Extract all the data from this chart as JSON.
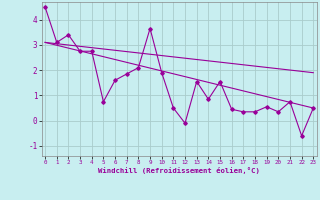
{
  "xlabel": "Windchill (Refroidissement éolien,°C)",
  "bg_color": "#c8eef0",
  "line_color": "#990099",
  "grid_color": "#aacccc",
  "series1_y": [
    4.5,
    3.1,
    3.4,
    2.75,
    2.75,
    0.75,
    1.6,
    1.85,
    2.1,
    3.65,
    1.9,
    0.5,
    -0.1,
    1.55,
    0.85,
    1.55,
    0.45,
    0.35,
    0.35,
    0.55,
    0.35,
    0.75,
    -0.6,
    0.5
  ],
  "trend1_start_y": 3.1,
  "trend1_end_y": 1.9,
  "trend2_start_y": 3.1,
  "trend2_end_y": 0.5,
  "ylim": [
    -1.4,
    4.7
  ],
  "xlim": [
    -0.3,
    23.3
  ],
  "yticks": [
    -1,
    0,
    1,
    2,
    3,
    4
  ],
  "xticks": [
    0,
    1,
    2,
    3,
    4,
    5,
    6,
    7,
    8,
    9,
    10,
    11,
    12,
    13,
    14,
    15,
    16,
    17,
    18,
    19,
    20,
    21,
    22,
    23
  ]
}
